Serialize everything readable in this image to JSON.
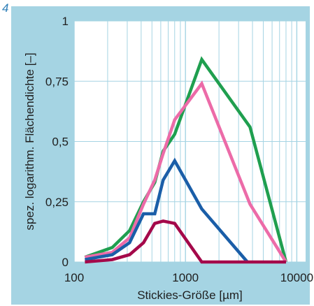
{
  "figure_number": "4",
  "colors": {
    "panel_background": "#a5d4e3",
    "plot_background": "#ffffff",
    "grid": "#a5d4e3",
    "series": [
      "#1f9f4f",
      "#ec6ba8",
      "#1a5ea8",
      "#a4094a"
    ]
  },
  "chart_data": {
    "type": "line",
    "title": "",
    "xlabel": "Stickies-Größe [µm]",
    "ylabel": "spez. logarithm. Flächendichte [–]",
    "x_scale": "log",
    "xlim": [
      100,
      12000
    ],
    "ylim": [
      0,
      1
    ],
    "grid": true,
    "x_ticks": [
      100,
      1000,
      10000
    ],
    "x_tick_labels": [
      "100",
      "1000",
      "10000"
    ],
    "y_ticks": [
      0,
      0.25,
      0.5,
      0.75,
      1
    ],
    "y_tick_labels": [
      "0",
      "0,25",
      "0,5",
      "0,75",
      "1"
    ],
    "series": [
      {
        "color": "#1f9f4f",
        "x": [
          125,
          220,
          315,
          420,
          530,
          630,
          800,
          1400,
          3800,
          8000
        ],
        "y": [
          0.02,
          0.06,
          0.13,
          0.25,
          0.33,
          0.46,
          0.53,
          0.84,
          0.56,
          0.0
        ]
      },
      {
        "color": "#ec6ba8",
        "x": [
          125,
          220,
          315,
          420,
          530,
          630,
          800,
          1400,
          3800,
          8000
        ],
        "y": [
          0.02,
          0.04,
          0.1,
          0.24,
          0.34,
          0.45,
          0.59,
          0.74,
          0.24,
          0.0
        ]
      },
      {
        "color": "#1a5ea8",
        "x": [
          125,
          220,
          315,
          420,
          530,
          630,
          800,
          1400,
          3600
        ],
        "y": [
          0.01,
          0.03,
          0.08,
          0.2,
          0.2,
          0.34,
          0.42,
          0.22,
          0.0
        ]
      },
      {
        "color": "#a4094a",
        "x": [
          125,
          220,
          315,
          420,
          530,
          630,
          800,
          1400,
          8000
        ],
        "y": [
          0.0,
          0.01,
          0.03,
          0.08,
          0.16,
          0.17,
          0.16,
          0.0,
          0.0
        ]
      }
    ]
  }
}
